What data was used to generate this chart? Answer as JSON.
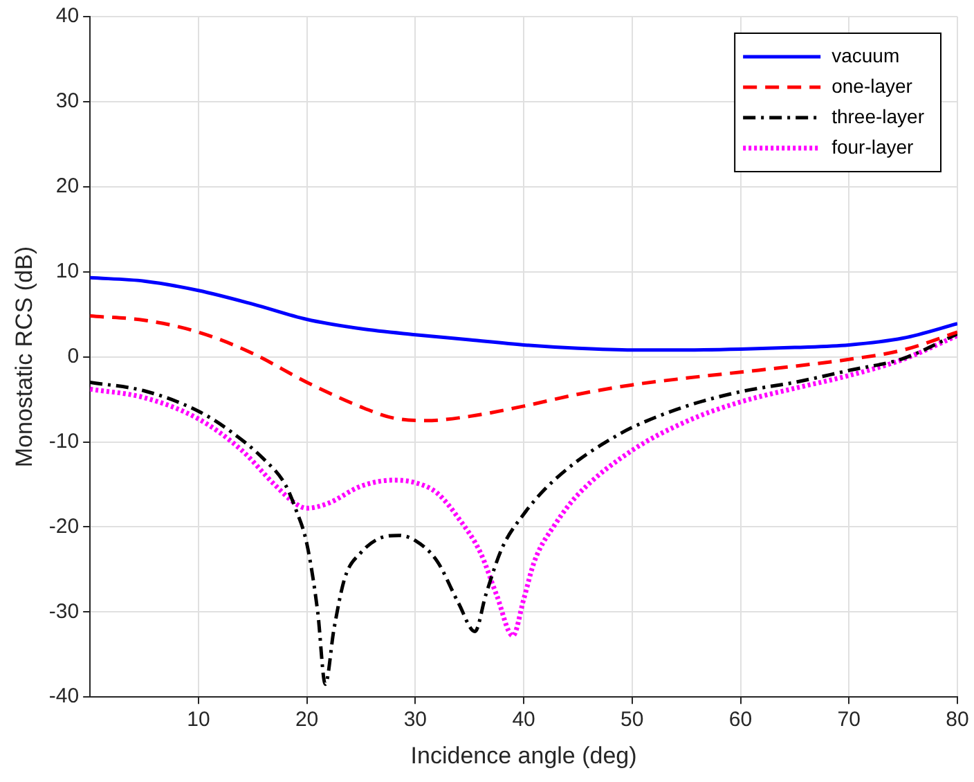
{
  "chart_data": {
    "type": "line",
    "xlabel": "Incidence angle (deg)",
    "ylabel": "Monostatic RCS (dB)",
    "xlim": [
      0,
      80
    ],
    "xticks": [
      10,
      20,
      30,
      40,
      50,
      60,
      70,
      80
    ],
    "ylim": [
      -40,
      40
    ],
    "yticks": [
      -40,
      -30,
      -20,
      -10,
      0,
      10,
      20,
      30,
      40
    ],
    "grid": true,
    "legend": "top right",
    "marker": "none",
    "series": [
      {
        "name": "vacuum",
        "color": "#0000ff",
        "line_style": "solid",
        "x": [
          0,
          5,
          10,
          15,
          20,
          25,
          30,
          35,
          40,
          45,
          50,
          55,
          60,
          65,
          70,
          75,
          80
        ],
        "values": [
          9.3,
          8.9,
          7.8,
          6.2,
          4.4,
          3.3,
          2.6,
          2.0,
          1.4,
          1.0,
          0.8,
          0.8,
          0.9,
          1.1,
          1.4,
          2.2,
          3.9
        ]
      },
      {
        "name": "one-layer",
        "color": "#ff0000",
        "line_style": "dashed",
        "x": [
          0,
          5,
          10,
          15,
          20,
          25,
          28,
          31,
          35,
          40,
          45,
          50,
          55,
          60,
          65,
          70,
          75,
          80
        ],
        "values": [
          4.8,
          4.3,
          2.9,
          0.4,
          -3,
          -5.9,
          -7.2,
          -7.5,
          -7,
          -5.8,
          -4.4,
          -3.3,
          -2.5,
          -1.8,
          -1.1,
          -0.3,
          0.8,
          2.9
        ]
      },
      {
        "name": "three-layer",
        "color": "#000000",
        "line_style": "dashdot",
        "x": [
          0,
          5,
          10,
          13,
          16,
          18,
          19,
          20,
          21,
          21.7,
          22.5,
          23.5,
          25,
          27,
          28.5,
          30,
          32,
          34,
          35.5,
          36.5,
          38,
          40,
          42,
          45,
          48,
          50,
          55,
          60,
          65,
          70,
          75,
          80
        ],
        "values": [
          -3,
          -4,
          -6.4,
          -8.8,
          -12,
          -15,
          -18,
          -22,
          -30,
          -38.5,
          -32,
          -26,
          -23,
          -21.2,
          -21,
          -21.6,
          -24,
          -29,
          -32.3,
          -28,
          -22.5,
          -18.5,
          -15.5,
          -12.2,
          -9.7,
          -8.3,
          -5.8,
          -4.1,
          -3,
          -1.6,
          -0.2,
          2.7
        ]
      },
      {
        "name": "four-layer",
        "color": "#ff00ff",
        "line_style": "dotted",
        "x": [
          0,
          5,
          10,
          14,
          17,
          19,
          20,
          22,
          25,
          28,
          30,
          32,
          34,
          36,
          37.5,
          39,
          40,
          41,
          43,
          45,
          50,
          55,
          60,
          65,
          70,
          75,
          80
        ],
        "values": [
          -3.8,
          -4.8,
          -7.3,
          -11,
          -15,
          -17.3,
          -17.8,
          -17.2,
          -15.2,
          -14.5,
          -14.8,
          -16,
          -19,
          -23,
          -28,
          -32.8,
          -28.5,
          -24,
          -19.5,
          -16.2,
          -11,
          -7.6,
          -5.3,
          -3.7,
          -2.2,
          -0.3,
          2.5
        ]
      }
    ]
  }
}
